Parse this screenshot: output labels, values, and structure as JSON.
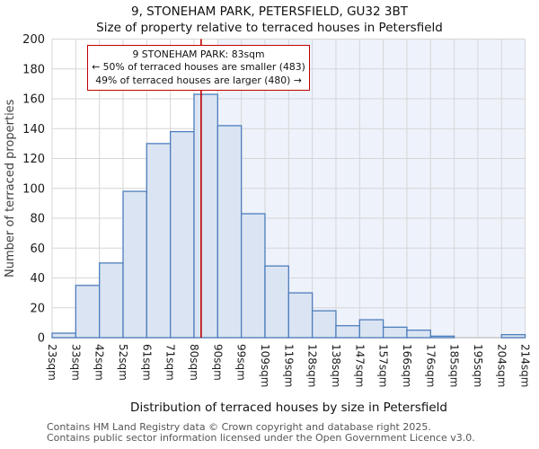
{
  "title": "9, STONEHAM PARK, PETERSFIELD, GU32 3BT",
  "subtitle": "Size of property relative to terraced houses in Petersfield",
  "annotation": {
    "line1": "9 STONEHAM PARK: 83sqm",
    "line2": "← 50% of terraced houses are smaller (483)",
    "line3": "49% of terraced houses are larger (480) →"
  },
  "footer": {
    "line1": "Contains HM Land Registry data © Crown copyright and database right 2025.",
    "line2": "Contains public sector information licensed under the Open Government Licence v3.0."
  },
  "chart_data": {
    "type": "bar",
    "title": "9, STONEHAM PARK, PETERSFIELD, GU32 3BT",
    "subtitle": "Size of property relative to terraced houses in Petersfield",
    "xlabel": "Distribution of terraced houses by size in Petersfield",
    "ylabel": "Number of terraced properties",
    "categories": [
      "23sqm",
      "33sqm",
      "42sqm",
      "52sqm",
      "61sqm",
      "71sqm",
      "80sqm",
      "90sqm",
      "99sqm",
      "109sqm",
      "119sqm",
      "128sqm",
      "138sqm",
      "147sqm",
      "157sqm",
      "166sqm",
      "176sqm",
      "185sqm",
      "195sqm",
      "204sqm",
      "214sqm"
    ],
    "bin_edges_sqm": [
      23,
      33,
      42,
      52,
      61,
      71,
      80,
      90,
      99,
      109,
      119,
      128,
      138,
      147,
      157,
      166,
      176,
      185,
      195,
      204,
      214
    ],
    "values": [
      3,
      35,
      50,
      98,
      130,
      138,
      163,
      142,
      83,
      48,
      30,
      18,
      8,
      12,
      7,
      5,
      1,
      0,
      0,
      2
    ],
    "ylim": [
      0,
      200
    ],
    "ytick_step": 20,
    "grid": true,
    "marker_value_sqm": 83,
    "marker_color": "#c00000",
    "bar_fill": "#dbe4f3",
    "bar_edge": "#4d7ebc",
    "shade_from_sqm": 90,
    "shade_color": "#eef2fb",
    "grid_color": "#d6d6d6",
    "axis_line_color": "#c6c6c6",
    "tick_label_color": "#1a1a1a",
    "axis_label_color": "#404040"
  }
}
